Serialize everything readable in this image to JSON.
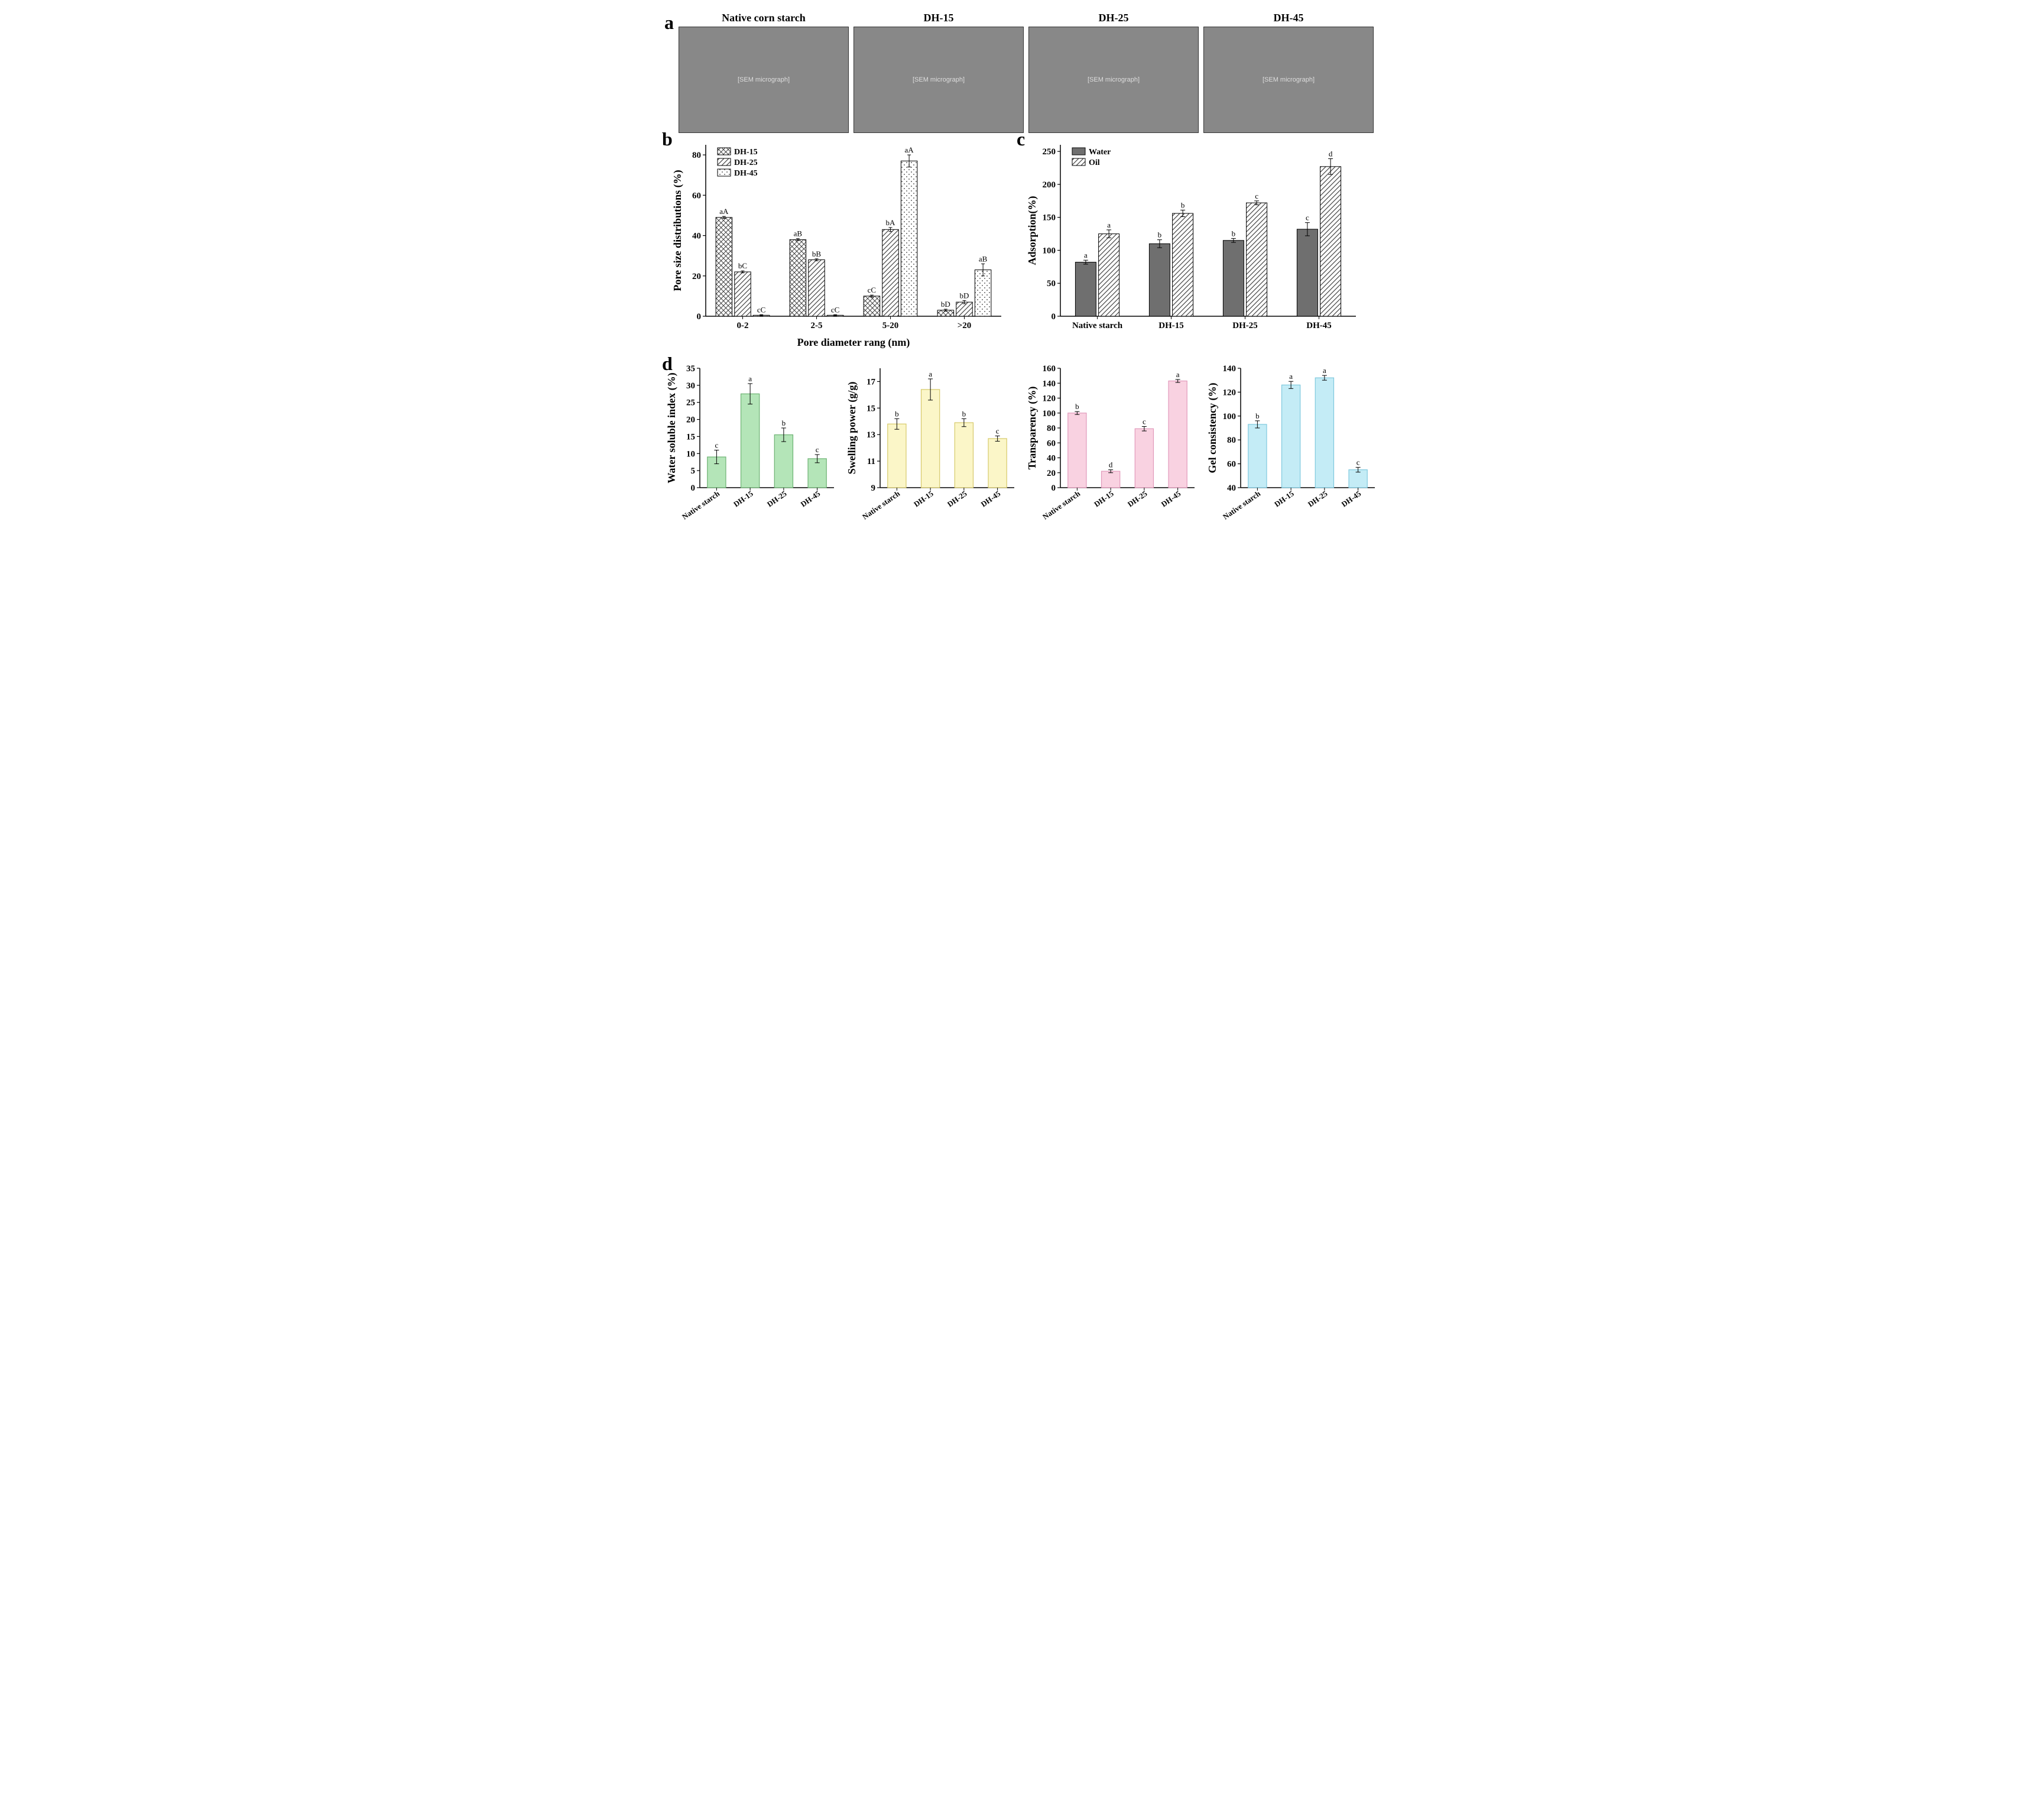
{
  "panel_labels": {
    "a": "a",
    "b": "b",
    "c": "c",
    "d": "d"
  },
  "sem": {
    "titles": [
      "Native corn starch",
      "DH-15",
      "DH-25",
      "DH-45"
    ]
  },
  "chart_b": {
    "type": "bar",
    "ylabel": "Pore size distributions (%)",
    "xlabel": "Pore diameter rang (nm)",
    "categories": [
      "0-2",
      "2-5",
      "5-20",
      ">20"
    ],
    "series": [
      {
        "name": "DH-15",
        "pattern": "crosshatch",
        "color": "#595959",
        "values": [
          49,
          38,
          10,
          3
        ],
        "err": [
          0.5,
          0.5,
          0.5,
          0.5
        ],
        "sig": [
          "aA",
          "aB",
          "cC",
          "bD"
        ]
      },
      {
        "name": "DH-25",
        "pattern": "diag",
        "color": "#595959",
        "values": [
          22,
          28,
          43,
          7
        ],
        "err": [
          0.5,
          0.5,
          1,
          0.8
        ],
        "sig": [
          "bC",
          "bB",
          "bA",
          "bD"
        ]
      },
      {
        "name": "DH-45",
        "pattern": "dots",
        "color": "#595959",
        "values": [
          0.5,
          0.5,
          77,
          23
        ],
        "err": [
          0.3,
          0.3,
          3,
          3
        ],
        "sig": [
          "cC",
          "cC",
          "aA",
          "aB"
        ]
      }
    ],
    "ylim": [
      0,
      85
    ],
    "ytick_step": 20,
    "legend_pos": "top-left",
    "background": "#ffffff"
  },
  "chart_c": {
    "type": "bar",
    "ylabel": "Adsorption(%)",
    "categories": [
      "Native starch",
      "DH-15",
      "DH-25",
      "DH-45"
    ],
    "series": [
      {
        "name": "Water",
        "pattern": "solid",
        "color": "#6f6f6f",
        "values": [
          82,
          110,
          115,
          132
        ],
        "err": [
          3,
          6,
          3,
          10
        ],
        "sig": [
          "a",
          "b",
          "b",
          "c"
        ]
      },
      {
        "name": "Oil",
        "pattern": "diag",
        "color": "#595959",
        "values": [
          125,
          156,
          172,
          227
        ],
        "err": [
          6,
          5,
          3,
          12
        ],
        "sig": [
          "a",
          "b",
          "c",
          "d"
        ]
      }
    ],
    "ylim": [
      0,
      260
    ],
    "ytick_step": 50,
    "legend_pos": "top-left",
    "background": "#ffffff"
  },
  "charts_d": [
    {
      "ylabel": "Water soluble index (%)",
      "categories": [
        "Native starch",
        "DH-15",
        "DH-25",
        "DH-45"
      ],
      "values": [
        9,
        27.5,
        15.5,
        8.5
      ],
      "err": [
        2,
        3,
        2,
        1.2
      ],
      "sig": [
        "c",
        "a",
        "b",
        "c"
      ],
      "ylim": [
        0,
        35
      ],
      "ytick_step": 5,
      "fill": "#b4e5b8",
      "border": "#6db273"
    },
    {
      "ylabel": "Swelling power (g/g)",
      "categories": [
        "Native starch",
        "DH-15",
        "DH-25",
        "DH-45"
      ],
      "values": [
        13.8,
        16.4,
        13.9,
        12.7
      ],
      "err": [
        0.4,
        0.8,
        0.3,
        0.2
      ],
      "sig": [
        "b",
        "a",
        "b",
        "c"
      ],
      "ylim": [
        9,
        18
      ],
      "ytick_step": 2,
      "fill": "#fbf6c8",
      "border": "#d6c96a"
    },
    {
      "ylabel": "Transparency (%)",
      "categories": [
        "Native starch",
        "DH-15",
        "DH-25",
        "DH-45"
      ],
      "values": [
        100,
        22,
        79,
        143
      ],
      "err": [
        2,
        2,
        3,
        2
      ],
      "sig": [
        "b",
        "d",
        "c",
        "a"
      ],
      "ylim": [
        0,
        160
      ],
      "ytick_step": 20,
      "fill": "#f9d2e1",
      "border": "#e29abb"
    },
    {
      "ylabel": "Gel consistency (%)",
      "categories": [
        "Native starch",
        "DH-15",
        "DH-25",
        "DH-45"
      ],
      "values": [
        93,
        126,
        132,
        55
      ],
      "err": [
        3,
        3,
        2,
        2
      ],
      "sig": [
        "b",
        "a",
        "a",
        "c"
      ],
      "ylim": [
        40,
        140
      ],
      "ytick_step": 20,
      "fill": "#c4ecf6",
      "border": "#7fc9de"
    }
  ],
  "colors": {
    "axis": "#000000",
    "text": "#000000"
  }
}
